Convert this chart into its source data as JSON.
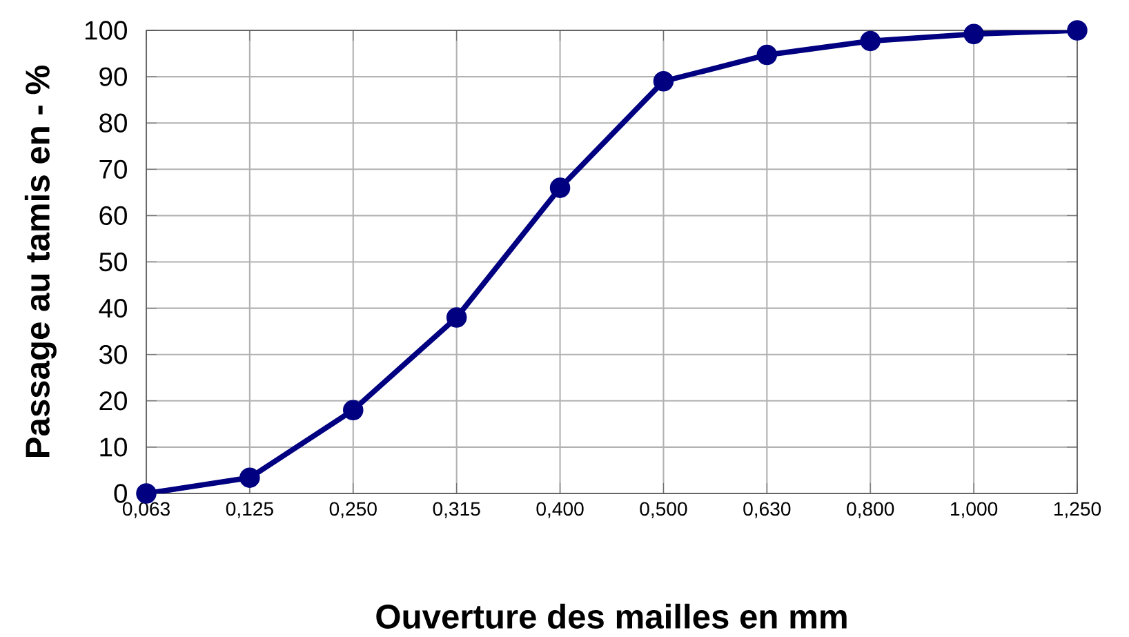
{
  "chart_data": {
    "type": "line",
    "xlabel": "Ouverture des mailles en mm",
    "ylabel": "Passage au tamis en - %",
    "categories": [
      "0,063",
      "0,125",
      "0,250",
      "0,315",
      "0,400",
      "0,500",
      "0,630",
      "0,800",
      "1,000",
      "1,250"
    ],
    "series": [
      {
        "color": "#000080",
        "values": [
          0,
          3.4,
          18,
          38,
          66,
          89,
          94.7,
          97.7,
          99.2,
          100
        ]
      }
    ],
    "ylim": [
      0,
      100
    ],
    "yticks": [
      0,
      10,
      20,
      30,
      40,
      50,
      60,
      70,
      80,
      90,
      100
    ],
    "grid": true,
    "marker": "circle",
    "line_style": "solid"
  }
}
